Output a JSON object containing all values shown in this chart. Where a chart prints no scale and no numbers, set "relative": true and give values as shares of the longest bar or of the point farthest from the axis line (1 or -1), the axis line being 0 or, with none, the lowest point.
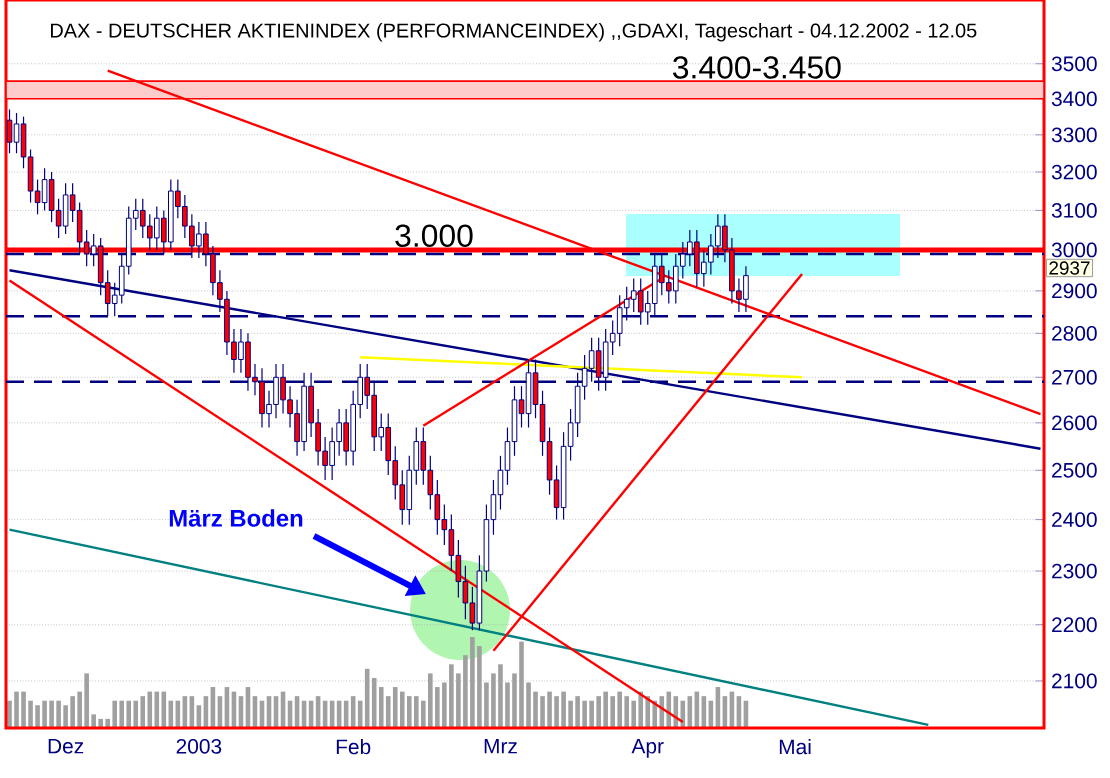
{
  "chart_data": [
    {
      "type": "candlestick",
      "title": "DAX - DEUTSCHER AKTIENINDEX (PERFORMANCEINDEX) ,,GDAXI, Tageschart - 04.12.2002 - 12.05",
      "categories": [
        null,
        null,
        null,
        null,
        null,
        null,
        null,
        null,
        "Dez",
        null,
        null,
        null,
        null,
        null,
        null,
        null,
        null,
        null,
        null,
        null,
        null,
        null,
        null,
        null,
        null,
        null,
        null,
        "2003",
        null,
        null,
        null,
        null,
        null,
        null,
        null,
        null,
        null,
        null,
        null,
        null,
        null,
        null,
        null,
        null,
        null,
        null,
        null,
        null,
        null,
        "Feb",
        null,
        null,
        null,
        null,
        null,
        null,
        null,
        null,
        null,
        null,
        null,
        null,
        null,
        null,
        null,
        null,
        null,
        null,
        null,
        null,
        "Mrz",
        null,
        null,
        null,
        null,
        null,
        null,
        null,
        null,
        null,
        null,
        null,
        null,
        null,
        null,
        null,
        null,
        null,
        null,
        null,
        null,
        "Apr",
        null,
        null,
        null,
        null,
        null,
        null,
        null,
        null,
        null,
        null,
        null,
        null,
        null,
        null,
        null,
        null,
        null,
        null,
        null,
        null,
        "Mai",
        null,
        null,
        null,
        null,
        null,
        null,
        null,
        null,
        null,
        null,
        null,
        null,
        null,
        null,
        null,
        null,
        null,
        null,
        null,
        null,
        null,
        null,
        null,
        null,
        null,
        null,
        null,
        null,
        null,
        null,
        null,
        null,
        null,
        null,
        null
      ],
      "ohlc": [
        [
          3340,
          3370,
          3250,
          3280
        ],
        [
          3280,
          3360,
          3250,
          3330
        ],
        [
          3330,
          3350,
          3210,
          3240
        ],
        [
          3240,
          3260,
          3120,
          3150
        ],
        [
          3150,
          3180,
          3090,
          3120
        ],
        [
          3120,
          3210,
          3100,
          3180
        ],
        [
          3180,
          3200,
          3070,
          3100
        ],
        [
          3100,
          3130,
          3030,
          3060
        ],
        [
          3060,
          3170,
          3040,
          3140
        ],
        [
          3140,
          3170,
          3070,
          3100
        ],
        [
          3100,
          3120,
          2990,
          3020
        ],
        [
          3020,
          3050,
          2960,
          2990
        ],
        [
          2990,
          3040,
          2960,
          3010
        ],
        [
          3010,
          3030,
          2890,
          2920
        ],
        [
          2920,
          2950,
          2840,
          2870
        ],
        [
          2870,
          2920,
          2840,
          2890
        ],
        [
          2890,
          2990,
          2870,
          2960
        ],
        [
          2960,
          3110,
          2940,
          3080
        ],
        [
          3080,
          3130,
          3050,
          3100
        ],
        [
          3100,
          3130,
          3030,
          3060
        ],
        [
          3060,
          3090,
          3000,
          3030
        ],
        [
          3030,
          3110,
          3000,
          3080
        ],
        [
          3080,
          3100,
          2990,
          3020
        ],
        [
          3020,
          3180,
          3000,
          3150
        ],
        [
          3150,
          3180,
          3080,
          3110
        ],
        [
          3110,
          3140,
          3030,
          3060
        ],
        [
          3060,
          3090,
          2980,
          3010
        ],
        [
          3010,
          3070,
          2980,
          3040
        ],
        [
          3040,
          3070,
          2960,
          2990
        ],
        [
          2990,
          3010,
          2890,
          2920
        ],
        [
          2920,
          2950,
          2850,
          2880
        ],
        [
          2880,
          2900,
          2750,
          2780
        ],
        [
          2780,
          2810,
          2710,
          2740
        ],
        [
          2740,
          2810,
          2710,
          2780
        ],
        [
          2780,
          2800,
          2670,
          2700
        ],
        [
          2700,
          2730,
          2660,
          2690
        ],
        [
          2690,
          2720,
          2590,
          2620
        ],
        [
          2620,
          2670,
          2590,
          2640
        ],
        [
          2640,
          2730,
          2610,
          2700
        ],
        [
          2700,
          2730,
          2620,
          2650
        ],
        [
          2650,
          2680,
          2590,
          2620
        ],
        [
          2620,
          2650,
          2530,
          2560
        ],
        [
          2560,
          2710,
          2540,
          2680
        ],
        [
          2680,
          2710,
          2570,
          2600
        ],
        [
          2600,
          2630,
          2510,
          2540
        ],
        [
          2540,
          2570,
          2480,
          2510
        ],
        [
          2510,
          2590,
          2480,
          2560
        ],
        [
          2560,
          2630,
          2530,
          2600
        ],
        [
          2600,
          2630,
          2510,
          2540
        ],
        [
          2540,
          2670,
          2510,
          2640
        ],
        [
          2640,
          2730,
          2610,
          2700
        ],
        [
          2700,
          2730,
          2630,
          2660
        ],
        [
          2660,
          2690,
          2540,
          2570
        ],
        [
          2570,
          2620,
          2540,
          2590
        ],
        [
          2590,
          2620,
          2490,
          2520
        ],
        [
          2520,
          2550,
          2440,
          2470
        ],
        [
          2470,
          2500,
          2390,
          2420
        ],
        [
          2420,
          2530,
          2390,
          2500
        ],
        [
          2500,
          2590,
          2470,
          2560
        ],
        [
          2560,
          2590,
          2470,
          2500
        ],
        [
          2500,
          2530,
          2420,
          2450
        ],
        [
          2450,
          2480,
          2370,
          2400
        ],
        [
          2400,
          2430,
          2350,
          2380
        ],
        [
          2380,
          2410,
          2300,
          2330
        ],
        [
          2330,
          2360,
          2250,
          2280
        ],
        [
          2280,
          2310,
          2210,
          2240
        ],
        [
          2240,
          2270,
          2190,
          2203
        ],
        [
          2203,
          2330,
          2190,
          2300
        ],
        [
          2300,
          2430,
          2280,
          2400
        ],
        [
          2400,
          2480,
          2370,
          2450
        ],
        [
          2450,
          2530,
          2420,
          2500
        ],
        [
          2500,
          2590,
          2470,
          2560
        ],
        [
          2560,
          2680,
          2530,
          2650
        ],
        [
          2650,
          2680,
          2590,
          2620
        ],
        [
          2620,
          2740,
          2590,
          2710
        ],
        [
          2710,
          2740,
          2610,
          2640
        ],
        [
          2640,
          2670,
          2530,
          2560
        ],
        [
          2560,
          2590,
          2450,
          2480
        ],
        [
          2480,
          2510,
          2400,
          2424
        ],
        [
          2424,
          2580,
          2400,
          2550
        ],
        [
          2550,
          2630,
          2520,
          2600
        ],
        [
          2600,
          2710,
          2570,
          2680
        ],
        [
          2680,
          2750,
          2650,
          2720
        ],
        [
          2720,
          2790,
          2690,
          2760
        ],
        [
          2760,
          2790,
          2670,
          2700
        ],
        [
          2700,
          2810,
          2670,
          2780
        ],
        [
          2780,
          2830,
          2750,
          2800
        ],
        [
          2800,
          2890,
          2770,
          2860
        ],
        [
          2860,
          2910,
          2830,
          2880
        ],
        [
          2880,
          2930,
          2850,
          2900
        ],
        [
          2900,
          2930,
          2820,
          2850
        ],
        [
          2850,
          2900,
          2820,
          2870
        ],
        [
          2870,
          2990,
          2840,
          2960
        ],
        [
          2960,
          2990,
          2890,
          2920
        ],
        [
          2920,
          2950,
          2870,
          2900
        ],
        [
          2900,
          2990,
          2870,
          2960
        ],
        [
          2960,
          3020,
          2930,
          2990
        ],
        [
          2990,
          3050,
          2960,
          3020
        ],
        [
          3020,
          3050,
          2910,
          2942
        ],
        [
          2942,
          3000,
          2910,
          2970
        ],
        [
          2970,
          3040,
          2940,
          3010
        ],
        [
          3010,
          3090,
          2980,
          3060
        ],
        [
          3060,
          3090,
          2970,
          3000
        ],
        [
          3000,
          3030,
          2870,
          2900
        ],
        [
          2900,
          2930,
          2850,
          2880
        ],
        [
          2880,
          2960,
          2850,
          2937
        ],
        null,
        null,
        null,
        null,
        null,
        null,
        null,
        null,
        null,
        null,
        null,
        null,
        null,
        null,
        null,
        null,
        null,
        null,
        null,
        null,
        null,
        null,
        null,
        null,
        null,
        null,
        null,
        null,
        null,
        null,
        null,
        null,
        null,
        null,
        null,
        null,
        null,
        null,
        null,
        null,
        null,
        null
      ],
      "log": true,
      "ylim": [
        2020,
        3690
      ],
      "yticks": [
        2100,
        2200,
        2300,
        2400,
        2500,
        2600,
        2700,
        2800,
        2900,
        3000,
        3100,
        3200,
        3300,
        3400,
        3500
      ],
      "grid": "y",
      "series": [
        {
          "type": "line",
          "color": "#000080",
          "values": [
            2950,
            null,
            null,
            null,
            null,
            null,
            null,
            null,
            null,
            null,
            null,
            null,
            null,
            null,
            null,
            null,
            null,
            null,
            null,
            null,
            null,
            null,
            null,
            null,
            null,
            null,
            null,
            null,
            null,
            null,
            null,
            null,
            null,
            null,
            null,
            null,
            null,
            null,
            null,
            null,
            null,
            null,
            null,
            null,
            null,
            null,
            null,
            null,
            null,
            null,
            null,
            null,
            null,
            null,
            null,
            null,
            null,
            null,
            null,
            null,
            null,
            null,
            null,
            null,
            null,
            null,
            null,
            null,
            null,
            null,
            null,
            null,
            null,
            null,
            null,
            null,
            null,
            null,
            null,
            null,
            null,
            null,
            null,
            null,
            null,
            null,
            null,
            null,
            null,
            null,
            null,
            null,
            null,
            null,
            null,
            null,
            null,
            null,
            null,
            null,
            null,
            null,
            null,
            null,
            null,
            null,
            null,
            null,
            null,
            null,
            null,
            null,
            null,
            null,
            null,
            null,
            null,
            null,
            null,
            null,
            null,
            null,
            null,
            null,
            null,
            null,
            null,
            null,
            null,
            null,
            null,
            null,
            null,
            null,
            null,
            null,
            null,
            null,
            null,
            null,
            null,
            null,
            null,
            null,
            null,
            null,
            null,
            2545
          ]
        },
        {
          "type": "line",
          "color": "#008080",
          "values": [
            2380,
            null,
            null,
            null,
            null,
            null,
            null,
            null,
            null,
            null,
            null,
            null,
            null,
            null,
            null,
            null,
            null,
            null,
            null,
            null,
            null,
            null,
            null,
            null,
            null,
            null,
            null,
            null,
            null,
            null,
            null,
            null,
            null,
            null,
            null,
            null,
            null,
            null,
            null,
            null,
            null,
            null,
            null,
            null,
            null,
            null,
            null,
            null,
            null,
            null,
            null,
            null,
            null,
            null,
            null,
            null,
            null,
            null,
            null,
            null,
            null,
            null,
            null,
            null,
            null,
            null,
            null,
            null,
            null,
            null,
            null,
            null,
            null,
            null,
            null,
            null,
            null,
            null,
            null,
            null,
            null,
            null,
            null,
            null,
            null,
            null,
            null,
            null,
            null,
            null,
            null,
            null,
            null,
            null,
            null,
            null,
            null,
            null,
            null,
            null,
            null,
            null,
            null,
            null,
            null,
            null,
            null,
            null,
            null,
            null,
            null,
            null,
            null,
            null,
            null,
            null,
            null,
            null,
            null,
            null,
            null,
            null,
            null,
            null,
            null,
            null,
            null,
            null,
            null,
            null,
            null,
            2025,
            null,
            null,
            null,
            null,
            null,
            null,
            null,
            null,
            null,
            null,
            null,
            null,
            null,
            null,
            null,
            null
          ]
        },
        {
          "type": "line",
          "color": "#ffff00",
          "values": [
            null,
            null,
            null,
            null,
            null,
            null,
            null,
            null,
            null,
            null,
            null,
            null,
            null,
            null,
            null,
            null,
            null,
            null,
            null,
            null,
            null,
            null,
            null,
            null,
            null,
            null,
            null,
            null,
            null,
            null,
            null,
            null,
            null,
            null,
            null,
            null,
            null,
            null,
            null,
            null,
            null,
            null,
            null,
            null,
            null,
            null,
            null,
            null,
            null,
            null,
            2745,
            null,
            null,
            null,
            null,
            null,
            null,
            null,
            null,
            null,
            null,
            null,
            null,
            null,
            null,
            null,
            null,
            null,
            null,
            null,
            null,
            null,
            null,
            null,
            null,
            null,
            null,
            null,
            null,
            null,
            null,
            null,
            null,
            null,
            null,
            null,
            null,
            null,
            null,
            null,
            null,
            null,
            null,
            null,
            null,
            null,
            null,
            null,
            null,
            null,
            null,
            null,
            null,
            null,
            null,
            null,
            null,
            null,
            null,
            null,
            null,
            null,
            null,
            2700,
            null,
            null,
            null,
            null,
            null,
            null,
            null,
            null,
            null,
            null,
            null,
            null,
            null,
            null,
            null,
            null,
            null,
            null,
            null,
            null,
            null,
            null,
            null,
            null,
            null,
            null,
            null,
            null,
            null,
            null,
            null,
            null,
            null,
            null
          ]
        },
        {
          "type": "line",
          "color": "#ff0000",
          "values": [
            null,
            null,
            null,
            null,
            null,
            null,
            null,
            null,
            null,
            null,
            null,
            null,
            null,
            null,
            3480,
            null,
            null,
            null,
            null,
            null,
            null,
            null,
            null,
            null,
            null,
            null,
            null,
            null,
            null,
            null,
            null,
            null,
            null,
            null,
            null,
            null,
            null,
            null,
            null,
            null,
            null,
            null,
            null,
            null,
            null,
            null,
            null,
            null,
            null,
            null,
            null,
            null,
            null,
            null,
            null,
            null,
            null,
            null,
            null,
            null,
            null,
            null,
            null,
            null,
            null,
            null,
            null,
            null,
            null,
            null,
            null,
            null,
            null,
            null,
            null,
            null,
            null,
            null,
            null,
            null,
            null,
            null,
            null,
            null,
            null,
            null,
            null,
            null,
            null,
            null,
            null,
            null,
            null,
            null,
            null,
            null,
            null,
            null,
            null,
            null,
            null,
            null,
            null,
            null,
            null,
            null,
            null,
            null,
            null,
            null,
            null,
            null,
            null,
            null,
            null,
            null,
            null,
            null,
            null,
            null,
            null,
            null,
            null,
            null,
            null,
            null,
            null,
            null,
            null,
            null,
            null,
            null,
            null,
            null,
            null,
            null,
            null,
            null,
            null,
            null,
            null,
            null,
            null,
            null,
            null,
            null,
            null,
            2619
          ]
        },
        {
          "type": "line",
          "color": "#ff0000",
          "values": [
            2925,
            null,
            null,
            null,
            null,
            null,
            null,
            null,
            null,
            null,
            null,
            null,
            null,
            null,
            null,
            null,
            null,
            null,
            null,
            null,
            null,
            null,
            null,
            null,
            null,
            null,
            null,
            null,
            null,
            null,
            null,
            null,
            null,
            null,
            null,
            null,
            null,
            null,
            null,
            null,
            null,
            null,
            null,
            null,
            null,
            null,
            null,
            null,
            null,
            null,
            null,
            null,
            null,
            null,
            null,
            null,
            null,
            null,
            null,
            null,
            null,
            null,
            null,
            null,
            null,
            null,
            null,
            null,
            null,
            null,
            null,
            null,
            null,
            null,
            null,
            null,
            null,
            null,
            null,
            null,
            null,
            null,
            null,
            null,
            null,
            null,
            null,
            null,
            null,
            null,
            null,
            null,
            null,
            null,
            null,
            null,
            2030,
            null,
            null,
            null,
            null,
            null,
            null,
            null,
            null,
            null,
            null,
            null,
            null,
            null,
            null,
            null,
            null,
            null,
            null,
            null,
            null,
            null,
            null,
            null,
            null,
            null,
            null,
            null,
            null,
            null,
            null,
            null,
            null,
            null,
            null,
            null,
            null,
            null,
            null,
            null,
            null,
            null,
            null,
            null,
            null,
            null,
            null,
            null,
            null,
            null,
            null,
            null
          ]
        },
        {
          "type": "line",
          "color": "#ff0000",
          "values": [
            null,
            null,
            null,
            null,
            null,
            null,
            null,
            null,
            null,
            null,
            null,
            null,
            null,
            null,
            null,
            null,
            null,
            null,
            null,
            null,
            null,
            null,
            null,
            null,
            null,
            null,
            null,
            null,
            null,
            null,
            null,
            null,
            null,
            null,
            null,
            null,
            null,
            null,
            null,
            null,
            null,
            null,
            null,
            null,
            null,
            null,
            null,
            null,
            null,
            null,
            null,
            null,
            null,
            null,
            null,
            null,
            null,
            null,
            null,
            2594,
            null,
            null,
            null,
            null,
            null,
            null,
            null,
            null,
            null,
            null,
            null,
            null,
            null,
            null,
            null,
            null,
            null,
            null,
            null,
            null,
            null,
            null,
            null,
            null,
            null,
            null,
            null,
            null,
            null,
            null,
            null,
            null,
            null,
            2930,
            null,
            null,
            null,
            null,
            null,
            null,
            null,
            null,
            null,
            null,
            null,
            null,
            null,
            null,
            null,
            null,
            null,
            null,
            null,
            null,
            null,
            null,
            null,
            null,
            null,
            null,
            null,
            null,
            null,
            null,
            null,
            null,
            null,
            null,
            null,
            null,
            null,
            null,
            null,
            null,
            null,
            null,
            null,
            null,
            null,
            null,
            null,
            null,
            null,
            null,
            null,
            null,
            null,
            null
          ]
        },
        {
          "type": "line",
          "color": "#ff0000",
          "values": [
            null,
            null,
            null,
            null,
            null,
            null,
            null,
            null,
            null,
            null,
            null,
            null,
            null,
            null,
            null,
            null,
            null,
            null,
            null,
            null,
            null,
            null,
            null,
            null,
            null,
            null,
            null,
            null,
            null,
            null,
            null,
            null,
            null,
            null,
            null,
            null,
            null,
            null,
            null,
            null,
            null,
            null,
            null,
            null,
            null,
            null,
            null,
            null,
            null,
            null,
            null,
            null,
            null,
            null,
            null,
            null,
            null,
            null,
            null,
            null,
            null,
            null,
            null,
            null,
            null,
            null,
            null,
            null,
            null,
            2153,
            null,
            null,
            null,
            null,
            null,
            null,
            null,
            null,
            null,
            null,
            null,
            null,
            null,
            null,
            null,
            null,
            null,
            null,
            null,
            null,
            null,
            null,
            null,
            null,
            null,
            null,
            null,
            null,
            null,
            null,
            null,
            null,
            null,
            null,
            null,
            null,
            null,
            null,
            null,
            null,
            null,
            null,
            null,
            2941,
            null,
            null,
            null,
            null,
            null,
            null,
            null,
            null,
            null,
            null,
            null,
            null,
            null,
            null,
            null,
            null,
            null,
            null,
            null,
            null,
            null,
            null,
            null,
            null,
            null,
            null,
            null,
            null,
            null,
            null,
            null,
            null,
            null,
            null
          ]
        }
      ],
      "bands": [
        {
          "axis": "y",
          "from": 3400,
          "to": 3450,
          "label": "3.400-3.450",
          "color": "#ffcccc"
        }
      ],
      "ref_lines": [
        {
          "axis": "y",
          "value": 3000,
          "color": "#ff0000",
          "line_style": "solid"
        },
        {
          "axis": "y",
          "value": 2990,
          "color": "#000080",
          "line_style": "dashed"
        },
        {
          "axis": "y",
          "value": 2840,
          "color": "#000080",
          "line_style": "dashed"
        },
        {
          "axis": "y",
          "value": 2690,
          "color": "#000080",
          "line_style": "dashed"
        }
      ],
      "annotations": [
        "März Boden",
        "3.000",
        "2937"
      ]
    },
    {
      "type": "bar",
      "relative": true,
      "color": "#a0a0a0",
      "categories": [
        null,
        null,
        null,
        null,
        null,
        null,
        null,
        null,
        null,
        null,
        null,
        null,
        null,
        null,
        null,
        null,
        null,
        null,
        null,
        null,
        null,
        null,
        null,
        null,
        null,
        null,
        null,
        null,
        null,
        null,
        null,
        null,
        null,
        null,
        null,
        null,
        null,
        null,
        null,
        null,
        null,
        null,
        null,
        null,
        null,
        null,
        null,
        null,
        null,
        null,
        null,
        null,
        null,
        null,
        null,
        null,
        null,
        null,
        null,
        null,
        null,
        null,
        null,
        null,
        null,
        null,
        null,
        null,
        null,
        null,
        null,
        null,
        null,
        null,
        null,
        null,
        null,
        null,
        null,
        null,
        null,
        null,
        null,
        null,
        null,
        null,
        null,
        null,
        null,
        null,
        null,
        null,
        null,
        null,
        null,
        null,
        null,
        null,
        null,
        null,
        null,
        null,
        null,
        null,
        null,
        null,
        null,
        null,
        null,
        null,
        null,
        null,
        null,
        null,
        null,
        null,
        null,
        null,
        null,
        null,
        null,
        null,
        null,
        null,
        null,
        null,
        null,
        null,
        null,
        null,
        null,
        null,
        null,
        null,
        null,
        null,
        null,
        null,
        null,
        null,
        null,
        null,
        null,
        null,
        null,
        null,
        null,
        null
      ],
      "values": [
        0.3,
        0.4,
        0.4,
        0.3,
        0.25,
        0.3,
        0.3,
        0.3,
        0.25,
        0.35,
        0.4,
        0.6,
        0.15,
        0.1,
        0.1,
        0.3,
        0.3,
        0.3,
        0.3,
        0.35,
        0.4,
        0.4,
        0.4,
        0.3,
        0.3,
        0.35,
        0.35,
        0.25,
        0.35,
        0.45,
        0.35,
        0.45,
        0.4,
        0.35,
        0.45,
        0.35,
        0.3,
        0.35,
        0.35,
        0.4,
        0.3,
        0.35,
        0.3,
        0.3,
        0.35,
        0.3,
        0.3,
        0.3,
        0.3,
        0.35,
        0.3,
        0.65,
        0.55,
        0.45,
        0.35,
        0.45,
        0.4,
        0.35,
        0.35,
        0.3,
        0.6,
        0.45,
        0.5,
        0.7,
        0.6,
        0.8,
        1,
        0.9,
        0.5,
        0.6,
        0.7,
        0.5,
        0.6,
        0.95,
        0.5,
        0.4,
        0.35,
        0.4,
        0.35,
        0.4,
        0.3,
        0.35,
        0.3,
        0.3,
        0.35,
        0.4,
        0.35,
        0.4,
        0.35,
        0.3,
        0.4,
        0.35,
        0.3,
        0.35,
        0.4,
        0.35,
        0.3,
        0.35,
        0.4,
        0.35,
        0.3,
        0.45,
        0.35,
        0.4,
        0.35,
        0.3,
        null,
        null,
        null,
        null,
        null,
        null,
        null,
        null,
        null,
        null,
        null,
        null,
        null,
        null,
        null,
        null,
        null,
        null,
        null,
        null,
        null,
        null,
        null,
        null,
        null,
        null,
        null,
        null,
        null,
        null,
        null,
        null,
        null,
        null,
        null,
        null,
        null,
        null,
        null,
        null,
        null,
        null
      ]
    }
  ]
}
